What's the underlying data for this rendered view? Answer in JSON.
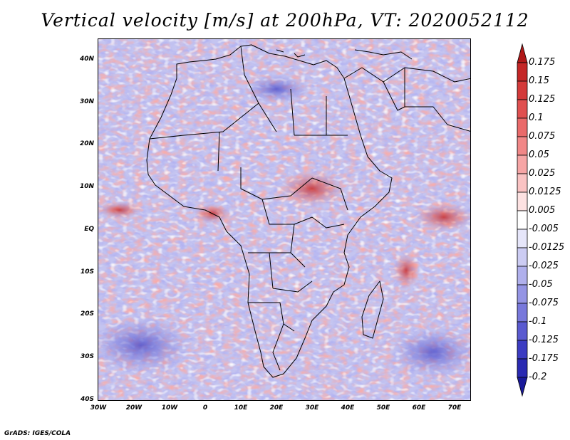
{
  "title": "Vertical velocity [m/s] at 200hPa, VT: 2020052112",
  "credit": "GrADS: IGES/COLA",
  "map": {
    "y_labels": [
      "40N",
      "30N",
      "20N",
      "10N",
      "EQ",
      "10S",
      "20S",
      "30S",
      "40S"
    ],
    "x_labels": [
      "30W",
      "20W",
      "10W",
      "0",
      "10E",
      "20E",
      "30E",
      "40E",
      "50E",
      "60E",
      "70E"
    ]
  },
  "colorbar": {
    "labels": [
      "0.175",
      "0.15",
      "0.125",
      "0.1",
      "0.075",
      "0.05",
      "0.025",
      "0.0125",
      "0.005",
      "-0.005",
      "-0.0125",
      "-0.025",
      "-0.05",
      "-0.075",
      "-0.1",
      "-0.125",
      "-0.175",
      "-0.2"
    ],
    "colors": [
      "#b01818",
      "#c42626",
      "#d43a3a",
      "#e05050",
      "#ea6a6a",
      "#f18787",
      "#f6a5a5",
      "#fac3c3",
      "#fde2e2",
      "#ffffff",
      "#e6e6fa",
      "#ccccf3",
      "#b0b0ec",
      "#9494e4",
      "#7878db",
      "#5a5ad0",
      "#3c3cc2",
      "#2a2ab2",
      "#1a1a9a"
    ]
  }
}
